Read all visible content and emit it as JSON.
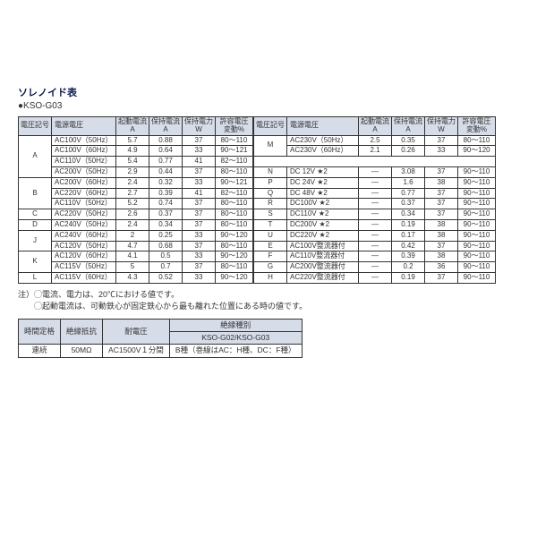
{
  "title": "ソレノイド表",
  "subtitle": "●KSO-G03",
  "headers": [
    "電圧記号",
    "電源電圧",
    "起動電流\nA",
    "保持電流\nA",
    "保持電力\nW",
    "許容電圧\n変動%"
  ],
  "left_rows": [
    {
      "group": "A",
      "span": 4,
      "cells": [
        "AC100V（50Hz）",
        "5.7",
        "0.88",
        "37",
        "80～110"
      ]
    },
    {
      "cells": [
        "AC100V（60Hz）",
        "4.9",
        "0.64",
        "33",
        "90～121"
      ]
    },
    {
      "cells": [
        "AC110V（50Hz）",
        "5.4",
        "0.77",
        "41",
        "82～110"
      ]
    },
    {
      "cells": [
        "AC200V（50Hz）",
        "2.9",
        "0.44",
        "37",
        "80～110"
      ]
    },
    {
      "group": "B",
      "span": 3,
      "cells": [
        "AC200V（60Hz）",
        "2.4",
        "0.32",
        "33",
        "90～121"
      ]
    },
    {
      "cells": [
        "AC220V（60Hz）",
        "2.7",
        "0.39",
        "41",
        "82～110"
      ]
    },
    {
      "cells": [
        "AC110V（50Hz）",
        "5.2",
        "0.74",
        "37",
        "80～110"
      ]
    },
    {
      "group": "C",
      "span": 1,
      "cells": [
        "AC220V（50Hz）",
        "2.6",
        "0.37",
        "37",
        "80～110"
      ]
    },
    {
      "group": "D",
      "span": 1,
      "cells": [
        "AC240V（50Hz）",
        "2.4",
        "0.34",
        "37",
        "80～110"
      ]
    },
    {
      "group": "J",
      "span": 2,
      "cells": [
        "AC240V（60Hz）",
        "2",
        "0.25",
        "33",
        "90～120"
      ]
    },
    {
      "cells": [
        "AC120V（50Hz）",
        "4.7",
        "0.68",
        "37",
        "80～110"
      ]
    },
    {
      "group": "K",
      "span": 2,
      "cells": [
        "AC120V（60Hz）",
        "4.1",
        "0.5",
        "33",
        "90～120"
      ]
    },
    {
      "cells": [
        "AC115V（50Hz）",
        "5",
        "0.7",
        "37",
        "80～110"
      ]
    },
    {
      "group": "L",
      "span": 1,
      "cells": [
        "AC115V（60Hz）",
        "4.3",
        "0.52",
        "33",
        "90～120"
      ]
    }
  ],
  "right_rows": [
    {
      "group": "M",
      "span": 2,
      "cells": [
        "AC230V（50Hz）",
        "2.5",
        "0.35",
        "37",
        "80～110"
      ]
    },
    {
      "cells": [
        "AC230V（60Hz）",
        "2.1",
        "0.26",
        "33",
        "90～120"
      ]
    },
    {
      "blank": true
    },
    {
      "group": "N",
      "span": 1,
      "cells": [
        "DC 12V ★2",
        "—",
        "3.08",
        "37",
        "90～110"
      ]
    },
    {
      "group": "P",
      "span": 1,
      "cells": [
        "DC 24V ★2",
        "—",
        "1.6",
        "38",
        "90～110"
      ]
    },
    {
      "group": "Q",
      "span": 1,
      "cells": [
        "DC 48V ★2",
        "—",
        "0.77",
        "37",
        "90～110"
      ]
    },
    {
      "group": "R",
      "span": 1,
      "cells": [
        "DC100V ★2",
        "—",
        "0.37",
        "37",
        "90～110"
      ]
    },
    {
      "group": "S",
      "span": 1,
      "cells": [
        "DC110V ★2",
        "—",
        "0.34",
        "37",
        "90～110"
      ]
    },
    {
      "group": "T",
      "span": 1,
      "cells": [
        "DC200V ★2",
        "—",
        "0.19",
        "38",
        "90～110"
      ]
    },
    {
      "group": "U",
      "span": 1,
      "cells": [
        "DC220V ★2",
        "—",
        "0.17",
        "38",
        "90～110"
      ]
    },
    {
      "group": "E",
      "span": 1,
      "cells": [
        "AC100V整流器付",
        "—",
        "0.42",
        "37",
        "90～110"
      ]
    },
    {
      "group": "F",
      "span": 1,
      "cells": [
        "AC110V整流器付",
        "—",
        "0.39",
        "38",
        "90～110"
      ]
    },
    {
      "group": "G",
      "span": 1,
      "cells": [
        "AC200V整流器付",
        "—",
        "0.2",
        "36",
        "90～110"
      ]
    },
    {
      "group": "H",
      "span": 1,
      "cells": [
        "AC220V整流器付",
        "—",
        "0.19",
        "37",
        "90～110"
      ]
    }
  ],
  "notes": [
    "注）◯電流、電力は、20℃における値です。",
    "　　◯起動電流は、可動鉄心が固定鉄心から最も離れた位置にある時の値です。"
  ],
  "bottom": {
    "headers_top": [
      "時間定格",
      "絶縁抵抗",
      "耐電圧",
      "絶縁種別"
    ],
    "headers_sub": "KSO-G02/KSO-G03",
    "row": [
      "連続",
      "50MΩ",
      "AC1500V１分間",
      "B種（巻線はAC：H種、DC：F種）"
    ]
  },
  "colors": {
    "header_bg": "#d6dce8",
    "border": "#333333",
    "title": "#0a1850"
  }
}
